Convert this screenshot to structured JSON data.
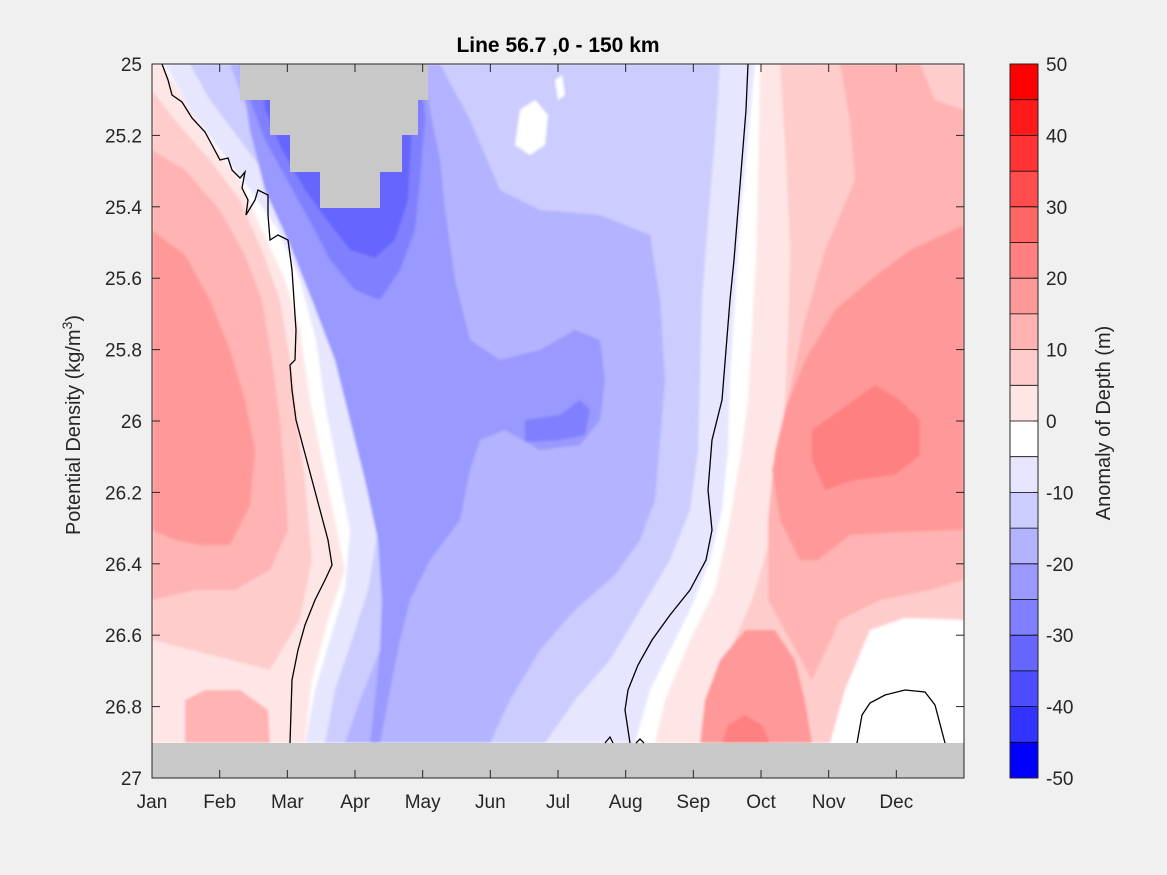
{
  "chart_data": {
    "type": "heatmap",
    "title": "Line 56.7 ,0 - 150 km",
    "ylabel_prefix": "Potential Density (kg/m",
    "ylabel_superscript": "3",
    "ylabel_suffix": ")",
    "colorbar_label": "Anomaly of Depth (m)",
    "xlabel": "",
    "x_ticks": [
      "Jan",
      "Feb",
      "Mar",
      "Apr",
      "May",
      "Jun",
      "Jul",
      "Aug",
      "Sep",
      "Oct",
      "Nov",
      "Dec"
    ],
    "y_ticks": [
      "25",
      "25.2",
      "25.4",
      "25.6",
      "25.8",
      "26",
      "26.2",
      "26.4",
      "26.6",
      "26.8",
      "27"
    ],
    "ylim": [
      25,
      27
    ],
    "y_reversed": true,
    "x_unit": "month",
    "xlim": [
      1,
      13
    ],
    "colorbar_ticks": [
      "50",
      "40",
      "30",
      "20",
      "10",
      "0",
      "-10",
      "-20",
      "-30",
      "-40",
      "-50"
    ],
    "colorbar_range": [
      -50,
      50
    ],
    "contour_interval": 5,
    "zero_contour_color": "#000000",
    "missing_color": "#c8c8c8",
    "levels": [
      {
        "range": [
          45,
          50
        ],
        "color": "#ff0000"
      },
      {
        "range": [
          40,
          45
        ],
        "color": "#ff1a1a"
      },
      {
        "range": [
          35,
          40
        ],
        "color": "#ff3333"
      },
      {
        "range": [
          30,
          35
        ],
        "color": "#ff4d4d"
      },
      {
        "range": [
          25,
          30
        ],
        "color": "#ff6666"
      },
      {
        "range": [
          20,
          25
        ],
        "color": "#ff8080"
      },
      {
        "range": [
          15,
          20
        ],
        "color": "#ff9999"
      },
      {
        "range": [
          10,
          15
        ],
        "color": "#ffb3b3"
      },
      {
        "range": [
          5,
          10
        ],
        "color": "#ffcccc"
      },
      {
        "range": [
          0,
          5
        ],
        "color": "#ffe6e6"
      },
      {
        "range": [
          -5,
          0
        ],
        "color": "#ffffff"
      },
      {
        "range": [
          -10,
          -5
        ],
        "color": "#e6e6ff"
      },
      {
        "range": [
          -15,
          -10
        ],
        "color": "#ccccff"
      },
      {
        "range": [
          -20,
          -15
        ],
        "color": "#b3b3ff"
      },
      {
        "range": [
          -25,
          -20
        ],
        "color": "#9999ff"
      },
      {
        "range": [
          -30,
          -25
        ],
        "color": "#8080ff"
      },
      {
        "range": [
          -35,
          -30
        ],
        "color": "#6666ff"
      },
      {
        "range": [
          -40,
          -35
        ],
        "color": "#4d4dff"
      },
      {
        "range": [
          -45,
          -40
        ],
        "color": "#3333ff"
      },
      {
        "range": [
          -50,
          -45
        ],
        "color": "#0000ff"
      }
    ]
  }
}
